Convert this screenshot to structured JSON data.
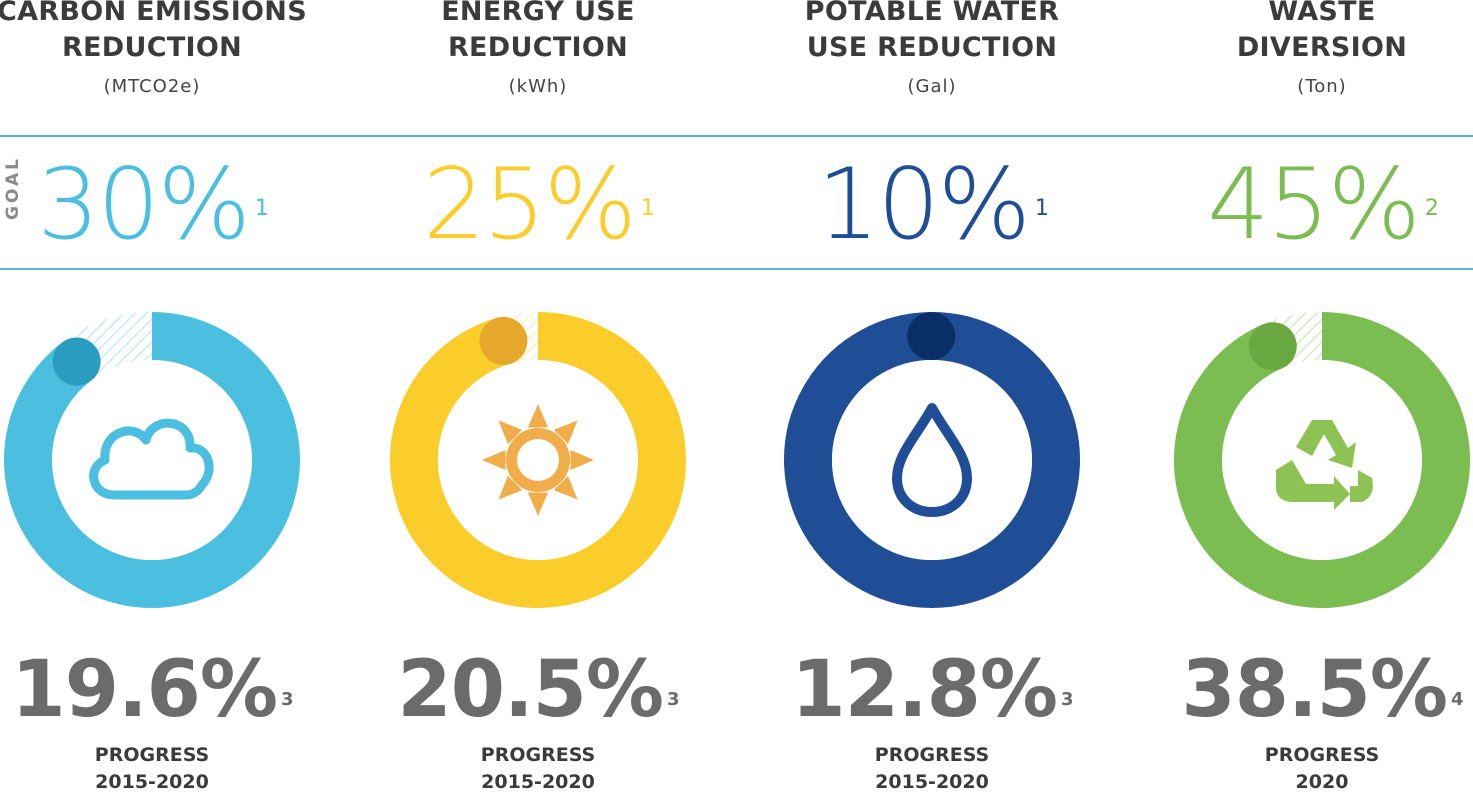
{
  "goal_label": "GOAL",
  "chart_data": [
    {
      "type": "donut",
      "title_line1": "CARBON EMISSIONS",
      "title_line2": "REDUCTION",
      "unit": "(MTCO2e)",
      "goal": 30,
      "goal_text": "30%",
      "goal_note": "1",
      "progress": 19.6,
      "progress_text": "19.6%",
      "progress_note": "3",
      "progress_label": "PROGRESS",
      "period": "2015-2020",
      "color": "#4bbfe0",
      "accent": "#2a9cc0",
      "icon": "cloud-icon"
    },
    {
      "type": "donut",
      "title_line1": "ENERGY USE",
      "title_line2": "REDUCTION",
      "unit": "(kWh)",
      "goal": 25,
      "goal_text": "25%",
      "goal_note": "1",
      "progress": 20.5,
      "progress_text": "20.5%",
      "progress_note": "3",
      "progress_label": "PROGRESS",
      "period": "2015-2020",
      "color": "#fbcd2b",
      "accent": "#e6a82a",
      "icon": "sun-icon"
    },
    {
      "type": "donut",
      "title_line1": "POTABLE WATER",
      "title_line2": "USE REDUCTION",
      "unit": "(Gal)",
      "goal": 10,
      "goal_text": "10%",
      "goal_note": "1",
      "progress": 12.8,
      "progress_text": "12.8%",
      "progress_note": "3",
      "progress_label": "PROGRESS",
      "period": "2015-2020",
      "color": "#1f4e97",
      "accent": "#0a2f66",
      "icon": "water-drop-icon"
    },
    {
      "type": "donut",
      "title_line1": "WASTE",
      "title_line2": "DIVERSION",
      "unit": "(Ton)",
      "goal": 45,
      "goal_text": "45%",
      "goal_note": "2",
      "progress": 38.5,
      "progress_text": "38.5%",
      "progress_note": "4",
      "progress_label": "PROGRESS",
      "period": "2020",
      "color": "#7cbd52",
      "accent": "#69a841",
      "icon": "recycle-icon"
    }
  ]
}
